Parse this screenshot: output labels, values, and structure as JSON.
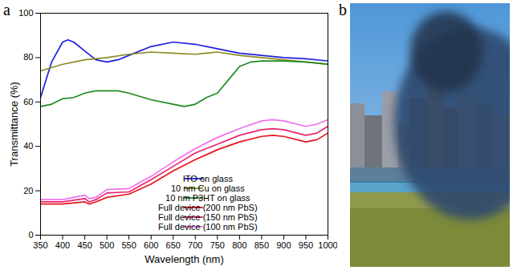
{
  "panel_labels": [
    "a",
    "b"
  ],
  "chart_data": {
    "type": "line",
    "x_label": "Wavelength (nm)",
    "y_label": "Transmittance (%)",
    "xlim": [
      350,
      1000
    ],
    "xticks": [
      350,
      400,
      450,
      500,
      550,
      600,
      650,
      700,
      750,
      800,
      850,
      900,
      950,
      1000
    ],
    "ylim": [
      0,
      100
    ],
    "yticks": [
      0,
      20,
      40,
      60,
      80,
      100
    ],
    "grid": false,
    "legend": "lower right",
    "series": [
      {
        "name": "ITO on glass",
        "color": "#2020e0",
        "x": [
          350,
          375,
          400,
          412,
          425,
          450,
          475,
          500,
          525,
          550,
          600,
          650,
          700,
          750,
          800,
          850,
          900,
          950,
          1000
        ],
        "values": [
          62,
          78,
          87,
          88,
          87,
          83,
          79,
          78,
          79,
          81,
          85,
          87,
          86,
          84,
          82,
          81,
          80,
          79.5,
          78.5
        ]
      },
      {
        "name": "10 nm Cu on glass",
        "color": "#8b8b22",
        "x": [
          350,
          400,
          450,
          500,
          550,
          600,
          650,
          700,
          725,
          750,
          800,
          850,
          900,
          950,
          1000
        ],
        "values": [
          74,
          77,
          79,
          80,
          81.5,
          82.5,
          82,
          81.5,
          82,
          82.5,
          81,
          80,
          79,
          78,
          77
        ]
      },
      {
        "name": "10 nm P3HT on glass",
        "color": "#1f8b1f",
        "x": [
          350,
          375,
          400,
          425,
          450,
          475,
          500,
          525,
          550,
          600,
          650,
          675,
          700,
          725,
          750,
          775,
          800,
          825,
          850,
          900,
          950,
          1000
        ],
        "values": [
          58,
          59,
          61.5,
          62,
          64,
          65,
          65,
          65,
          64,
          61,
          59,
          58,
          59,
          62,
          64,
          70,
          76,
          78,
          78.5,
          78.5,
          78,
          77
        ]
      },
      {
        "name": "Full device (200 nm PbS)",
        "color": "#e8141e",
        "x": [
          350,
          400,
          450,
          460,
          475,
          500,
          550,
          600,
          650,
          700,
          750,
          800,
          850,
          875,
          900,
          950,
          975,
          1000
        ],
        "values": [
          14,
          14,
          15,
          14,
          15,
          17,
          18.5,
          23,
          29,
          34,
          38.5,
          42,
          44.5,
          45,
          44.5,
          42,
          43,
          46
        ]
      },
      {
        "name": "Full device (150 nm PbS)",
        "color": "#e8266e",
        "x": [
          350,
          400,
          450,
          460,
          475,
          500,
          550,
          600,
          650,
          700,
          750,
          800,
          850,
          875,
          900,
          950,
          975,
          1000
        ],
        "values": [
          15,
          15,
          16.5,
          15,
          16,
          19,
          19.5,
          25,
          31,
          37,
          41,
          45,
          47.5,
          48,
          47.5,
          45,
          46,
          49
        ]
      },
      {
        "name": "Full device (100 nm PbS)",
        "color": "#f070f0",
        "x": [
          350,
          400,
          450,
          460,
          475,
          500,
          550,
          600,
          650,
          700,
          750,
          800,
          850,
          875,
          900,
          950,
          975,
          1000
        ],
        "values": [
          16,
          16,
          18,
          16.5,
          17,
          20.5,
          21,
          26.5,
          33,
          39,
          44,
          48,
          51.5,
          52,
          51.5,
          49,
          50,
          52
        ]
      }
    ]
  }
}
